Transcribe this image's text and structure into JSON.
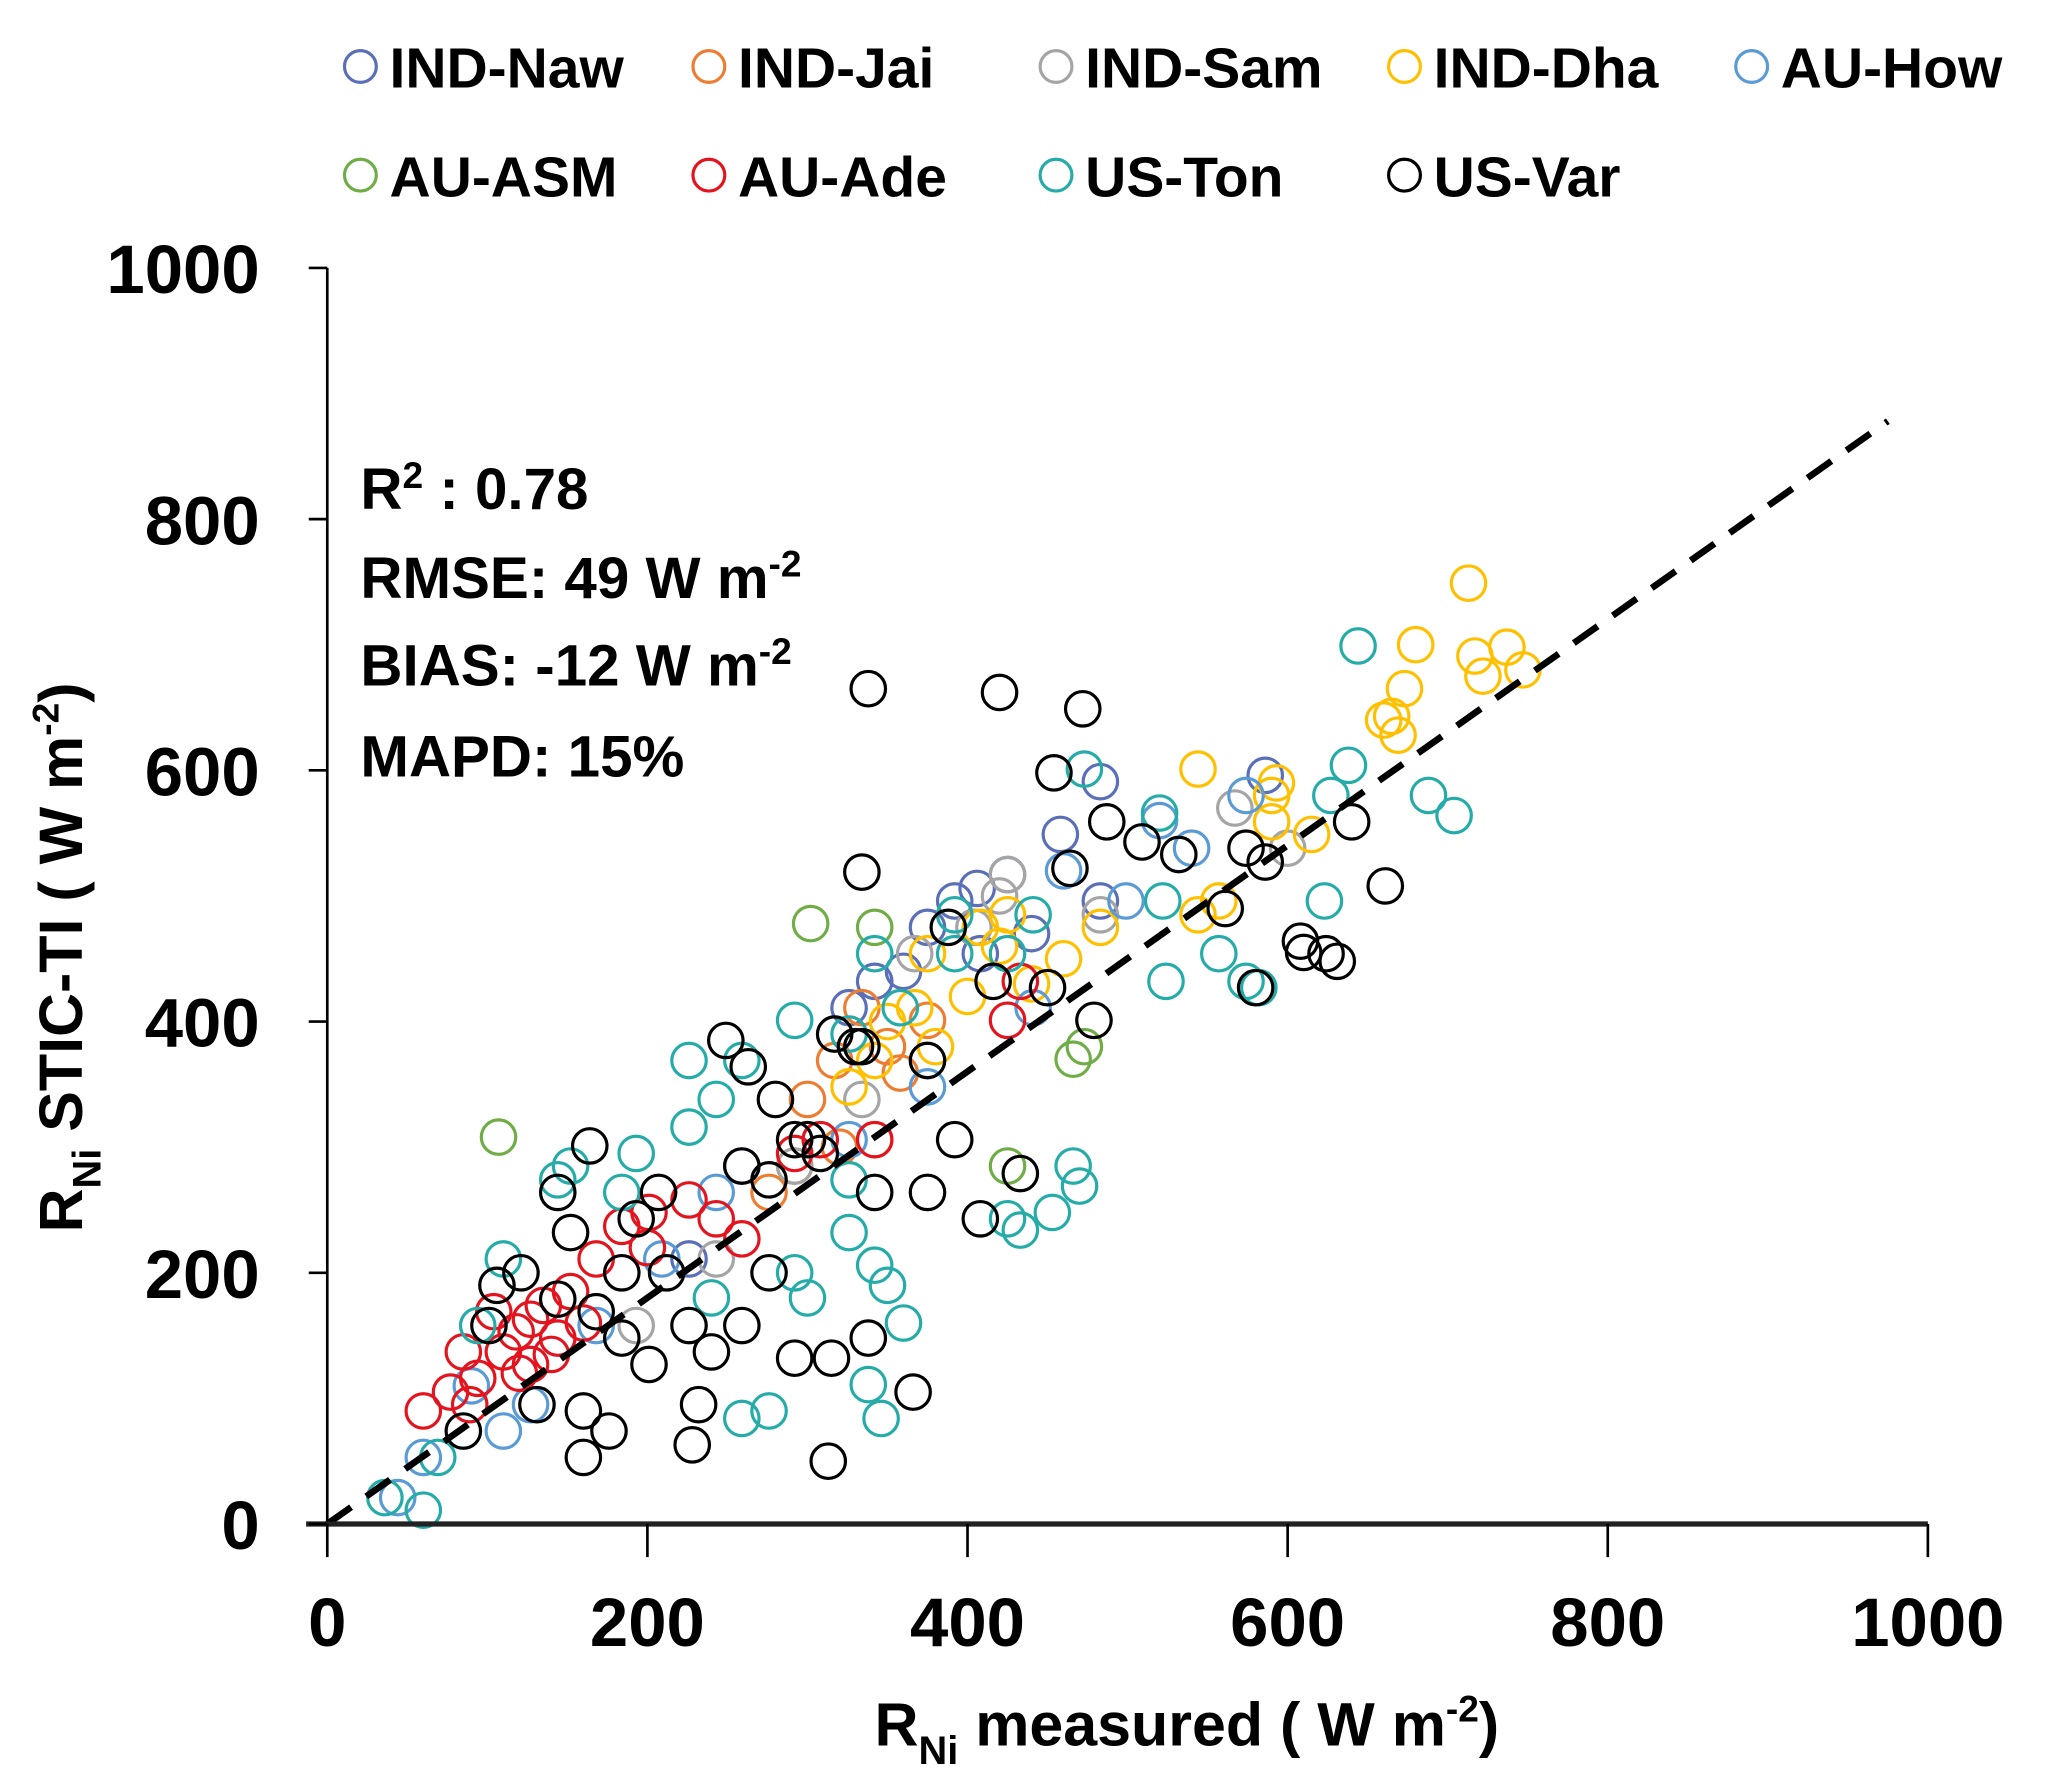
{
  "chart_data": {
    "type": "scatter",
    "xlabel": {
      "main": "R",
      "sub": "Ni",
      "rest": "  measured ( W m",
      "sup": "-2",
      "end": ")"
    },
    "ylabel": {
      "main": "R",
      "sub": "Ni",
      "rest": "  STIC-TI ( W m",
      "sup": "-2",
      "end": ")"
    },
    "xlim": [
      0,
      1000
    ],
    "ylim": [
      0,
      1000
    ],
    "xticks": [
      "0",
      "200",
      "400",
      "600",
      "800",
      "1000"
    ],
    "yticks": [
      "0",
      "200",
      "400",
      "600",
      "800",
      "1000"
    ],
    "grid": false,
    "legend_placement": "top",
    "fit_line": {
      "x": [
        0,
        975
      ],
      "y": [
        0,
        878
      ],
      "style": "dashed",
      "color": "#000000"
    },
    "annotations": {
      "r2": {
        "a": "R",
        "sup": "2",
        "b": " : 0.78"
      },
      "rmse": {
        "a": "RMSE: 49 W m",
        "sup": "-2"
      },
      "bias": {
        "a": "BIAS: -12 W m",
        "sup": "-2"
      },
      "mapd": {
        "a": "MAPD: 15%"
      }
    },
    "series": [
      {
        "name": "IND-Naw",
        "color": "#5a6fb8",
        "points": [
          [
            586,
            596
          ],
          [
            458,
            549
          ],
          [
            483,
            496
          ],
          [
            406,
            506
          ],
          [
            375,
            475
          ],
          [
            342,
            432
          ],
          [
            326,
            411
          ],
          [
            392,
            496
          ],
          [
            425,
            517
          ],
          [
            408,
            454
          ],
          [
            483,
            591
          ],
          [
            259,
            285
          ],
          [
            226,
            211
          ],
          [
            440,
            470
          ],
          [
            360,
            440
          ]
        ]
      },
      {
        "name": "IND-Jai",
        "color": "#ed7d31",
        "points": [
          [
            300,
            338
          ],
          [
            317,
            369
          ],
          [
            334,
            411
          ],
          [
            292,
            285
          ],
          [
            358,
            359
          ],
          [
            342,
            306
          ],
          [
            375,
            401
          ],
          [
            276,
            264
          ],
          [
            320,
            300
          ],
          [
            350,
            380
          ]
        ]
      },
      {
        "name": "IND-Sam",
        "color": "#a5a5a5",
        "points": [
          [
            600,
            538
          ],
          [
            567,
            570
          ],
          [
            425,
            517
          ],
          [
            367,
            454
          ],
          [
            483,
            485
          ],
          [
            404,
            475
          ],
          [
            334,
            338
          ],
          [
            292,
            285
          ],
          [
            243,
            211
          ],
          [
            193,
            158
          ],
          [
            420,
            500
          ]
        ]
      },
      {
        "name": "IND-Dha",
        "color": "#ffc000",
        "points": [
          [
            713,
            749
          ],
          [
            680,
            700
          ],
          [
            717,
            691
          ],
          [
            737,
            698
          ],
          [
            722,
            675
          ],
          [
            747,
            680
          ],
          [
            673,
            665
          ],
          [
            665,
            643
          ],
          [
            669,
            628
          ],
          [
            660,
            640
          ],
          [
            544,
            601
          ],
          [
            590,
            580
          ],
          [
            593,
            590
          ],
          [
            590,
            559
          ],
          [
            615,
            549
          ],
          [
            544,
            485
          ],
          [
            557,
            496
          ],
          [
            483,
            475
          ],
          [
            425,
            485
          ],
          [
            408,
            475
          ],
          [
            375,
            454
          ],
          [
            367,
            411
          ],
          [
            342,
            369
          ],
          [
            326,
            348
          ],
          [
            400,
            420
          ],
          [
            440,
            430
          ],
          [
            460,
            450
          ],
          [
            380,
            380
          ],
          [
            350,
            400
          ],
          [
            420,
            460
          ]
        ]
      },
      {
        "name": "AU-How",
        "color": "#5b9bd5",
        "points": [
          [
            60,
            53
          ],
          [
            44,
            21
          ],
          [
            110,
            74
          ],
          [
            127,
            95
          ],
          [
            168,
            158
          ],
          [
            209,
            211
          ],
          [
            243,
            264
          ],
          [
            326,
            306
          ],
          [
            375,
            348
          ],
          [
            441,
            411
          ],
          [
            499,
            496
          ],
          [
            540,
            538
          ],
          [
            574,
            580
          ],
          [
            520,
            560
          ],
          [
            460,
            520
          ],
          [
            90,
            110
          ]
        ]
      },
      {
        "name": "AU-ASM",
        "color": "#70ad47",
        "points": [
          [
            107,
            308
          ],
          [
            302,
            478
          ],
          [
            473,
            380
          ],
          [
            466,
            370
          ],
          [
            425,
            285
          ],
          [
            342,
            475
          ]
        ]
      },
      {
        "name": "AU-Ade",
        "color": "#e3141e",
        "points": [
          [
            60,
            90
          ],
          [
            77,
            105
          ],
          [
            94,
            116
          ],
          [
            110,
            137
          ],
          [
            118,
            153
          ],
          [
            127,
            163
          ],
          [
            135,
            174
          ],
          [
            104,
            169
          ],
          [
            152,
            185
          ],
          [
            168,
            211
          ],
          [
            184,
            237
          ],
          [
            201,
            248
          ],
          [
            226,
            258
          ],
          [
            243,
            243
          ],
          [
            259,
            227
          ],
          [
            292,
            295
          ],
          [
            308,
            306
          ],
          [
            342,
            306
          ],
          [
            425,
            401
          ],
          [
            433,
            432
          ],
          [
            89,
            95
          ],
          [
            127,
            127
          ],
          [
            144,
            148
          ],
          [
            85,
            137
          ],
          [
            120,
            120
          ],
          [
            140,
            135
          ],
          [
            160,
            160
          ],
          [
            200,
            220
          ]
        ]
      },
      {
        "name": "US-Ton",
        "color": "#26aca8",
        "points": [
          [
            644,
            699
          ],
          [
            638,
            604
          ],
          [
            688,
            580
          ],
          [
            704,
            564
          ],
          [
            627,
            580
          ],
          [
            623,
            496
          ],
          [
            522,
            496
          ],
          [
            524,
            432
          ],
          [
            557,
            454
          ],
          [
            574,
            432
          ],
          [
            582,
            427
          ],
          [
            473,
            601
          ],
          [
            466,
            285
          ],
          [
            470,
            269
          ],
          [
            453,
            248
          ],
          [
            433,
            234
          ],
          [
            425,
            243
          ],
          [
            392,
            454
          ],
          [
            375,
            369
          ],
          [
            326,
            274
          ],
          [
            342,
            206
          ],
          [
            350,
            190
          ],
          [
            346,
            84
          ],
          [
            338,
            111
          ],
          [
            326,
            232
          ],
          [
            292,
            200
          ],
          [
            259,
            84
          ],
          [
            276,
            90
          ],
          [
            226,
            369
          ],
          [
            226,
            316
          ],
          [
            193,
            295
          ],
          [
            184,
            264
          ],
          [
            152,
            285
          ],
          [
            144,
            274
          ],
          [
            110,
            211
          ],
          [
            94,
            158
          ],
          [
            69,
            53
          ],
          [
            60,
            11
          ],
          [
            36,
            21
          ],
          [
            326,
            390
          ],
          [
            342,
            454
          ],
          [
            292,
            401
          ],
          [
            358,
            411
          ],
          [
            392,
            485
          ],
          [
            425,
            454
          ],
          [
            441,
            485
          ],
          [
            243,
            338
          ],
          [
            259,
            369
          ],
          [
            520,
            566
          ],
          [
            300,
            180
          ],
          [
            360,
            160
          ],
          [
            240,
            180
          ]
        ]
      },
      {
        "name": "US-Var",
        "color": "#000000",
        "points": [
          [
            420,
            662
          ],
          [
            472,
            649
          ],
          [
            454,
            598
          ],
          [
            487,
            559
          ],
          [
            509,
            543
          ],
          [
            532,
            533
          ],
          [
            561,
            490
          ],
          [
            574,
            538
          ],
          [
            586,
            527
          ],
          [
            640,
            559
          ],
          [
            661,
            508
          ],
          [
            608,
            464
          ],
          [
            624,
            454
          ],
          [
            631,
            448
          ],
          [
            610,
            455
          ],
          [
            580,
            427
          ],
          [
            464,
            522
          ],
          [
            338,
            665
          ],
          [
            334,
            519
          ],
          [
            388,
            475
          ],
          [
            416,
            432
          ],
          [
            450,
            427
          ],
          [
            479,
            401
          ],
          [
            249,
            385
          ],
          [
            263,
            364
          ],
          [
            280,
            338
          ],
          [
            300,
            306
          ],
          [
            317,
            390
          ],
          [
            334,
            380
          ],
          [
            375,
            369
          ],
          [
            392,
            306
          ],
          [
            408,
            243
          ],
          [
            433,
            279
          ],
          [
            375,
            264
          ],
          [
            366,
            105
          ],
          [
            313,
            50
          ],
          [
            315,
            132
          ],
          [
            338,
            148
          ],
          [
            292,
            132
          ],
          [
            276,
            200
          ],
          [
            228,
            63
          ],
          [
            232,
            95
          ],
          [
            240,
            137
          ],
          [
            259,
            158
          ],
          [
            226,
            158
          ],
          [
            212,
            200
          ],
          [
            201,
            127
          ],
          [
            176,
            74
          ],
          [
            160,
            53
          ],
          [
            160,
            90
          ],
          [
            144,
            264
          ],
          [
            164,
            301
          ],
          [
            152,
            232
          ],
          [
            184,
            200
          ],
          [
            193,
            243
          ],
          [
            121,
            200
          ],
          [
            106,
            190
          ],
          [
            101,
            158
          ],
          [
            85,
            74
          ],
          [
            131,
            95
          ],
          [
            144,
            179
          ],
          [
            168,
            169
          ],
          [
            184,
            148
          ],
          [
            207,
            264
          ],
          [
            259,
            285
          ],
          [
            276,
            274
          ],
          [
            292,
            306
          ],
          [
            308,
            295
          ],
          [
            342,
            264
          ],
          [
            330,
            380
          ]
        ]
      }
    ]
  }
}
